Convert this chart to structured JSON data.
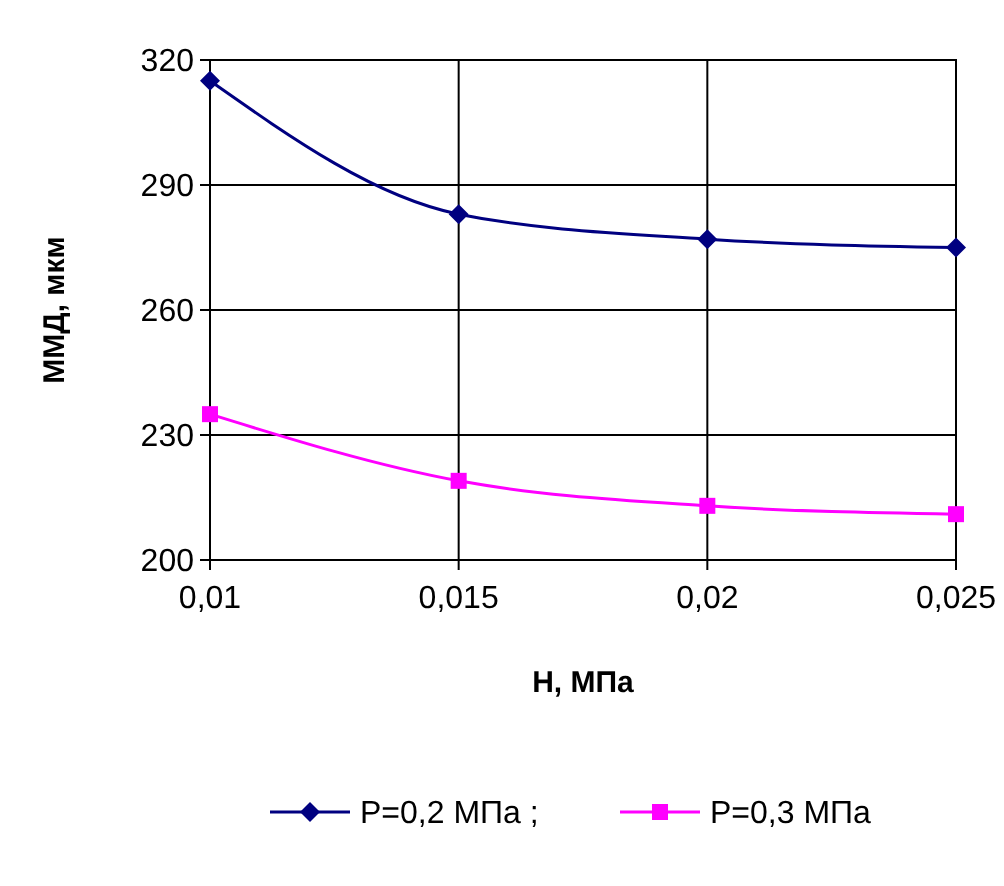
{
  "chart_data": {
    "type": "line",
    "xlabel": "H, МПа",
    "ylabel": "ММД, мкм",
    "x": [
      0.01,
      0.015,
      0.02,
      0.025
    ],
    "xlim": [
      0.01,
      0.025
    ],
    "xticks": [
      {
        "value": 0.01,
        "label": "0,01"
      },
      {
        "value": 0.015,
        "label": "0,015"
      },
      {
        "value": 0.02,
        "label": "0,02"
      },
      {
        "value": 0.025,
        "label": "0,025"
      }
    ],
    "ylim": [
      200,
      320
    ],
    "yticks": [
      200,
      230,
      260,
      290,
      320
    ],
    "grid": true,
    "legend": "bottom",
    "line_style": "solid",
    "series": [
      {
        "name": "P=0,2 МПа ;",
        "color": "#000080",
        "marker": "diamond",
        "values": [
          315,
          283,
          277,
          275
        ]
      },
      {
        "name": "P=0,3 МПа",
        "color": "#ff00ff",
        "marker": "square",
        "values": [
          235,
          219,
          213,
          211
        ]
      }
    ]
  }
}
